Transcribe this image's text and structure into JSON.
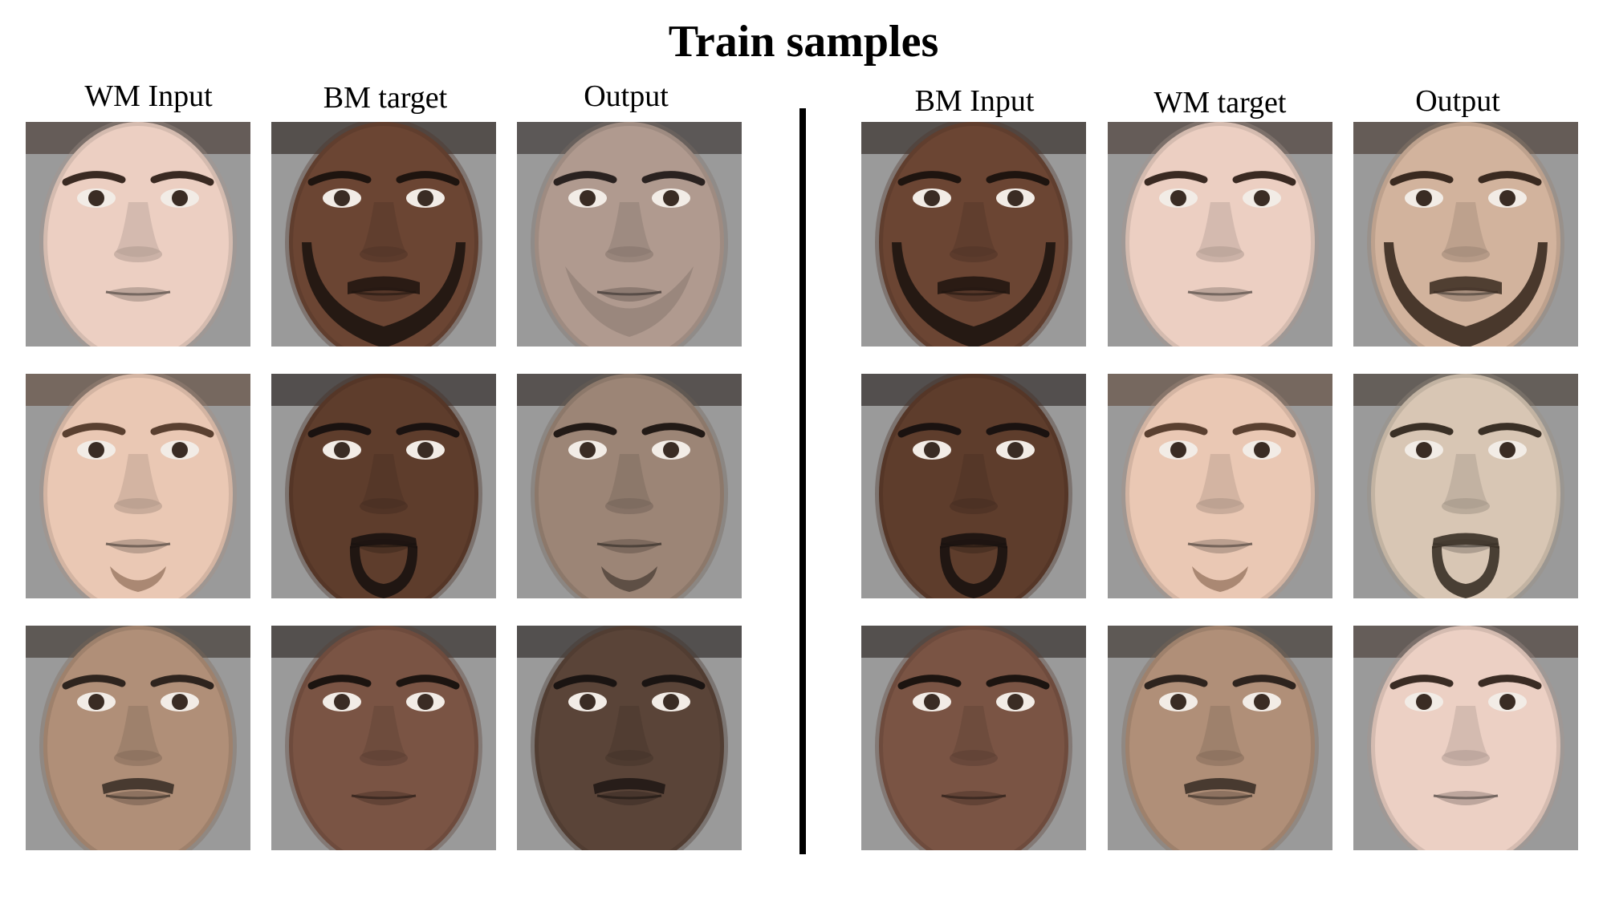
{
  "title": "Train samples",
  "left_panel": {
    "headers": [
      "WM Input",
      "BM target",
      "Output"
    ],
    "rows": [
      [
        {
          "icon": "face-photo",
          "skin": "#eccfc2",
          "hair": "#3a2a22",
          "beard": "none"
        },
        {
          "icon": "face-photo",
          "skin": "#6b4533",
          "hair": "#1e140f",
          "beard": "full"
        },
        {
          "icon": "face-photo",
          "skin": "#b09a8f",
          "hair": "#2a2220",
          "beard": "light"
        }
      ],
      [
        {
          "icon": "face-photo",
          "skin": "#eac8b4",
          "hair": "#5a4030",
          "beard": "goatee-light"
        },
        {
          "icon": "face-photo",
          "skin": "#5e3d2c",
          "hair": "#1a1210",
          "beard": "goatee"
        },
        {
          "icon": "face-photo",
          "skin": "#9c8576",
          "hair": "#221a16",
          "beard": "goatee-light"
        }
      ],
      [
        {
          "icon": "face-photo",
          "skin": "#b08f78",
          "hair": "#2e241e",
          "beard": "mustache"
        },
        {
          "icon": "face-photo",
          "skin": "#7a5444",
          "hair": "#1c1410",
          "beard": "none"
        },
        {
          "icon": "face-photo",
          "skin": "#5a4438",
          "hair": "#1a1412",
          "beard": "mustache"
        }
      ]
    ]
  },
  "right_panel": {
    "headers": [
      "BM Input",
      "WM target",
      "Output"
    ],
    "rows": [
      [
        {
          "icon": "face-photo",
          "skin": "#6b4533",
          "hair": "#1e140f",
          "beard": "full"
        },
        {
          "icon": "face-photo",
          "skin": "#eccfc2",
          "hair": "#3a2a22",
          "beard": "none"
        },
        {
          "icon": "face-photo",
          "skin": "#d2b39d",
          "hair": "#3a2a20",
          "beard": "full"
        }
      ],
      [
        {
          "icon": "face-photo",
          "skin": "#5e3d2c",
          "hair": "#1a1210",
          "beard": "goatee"
        },
        {
          "icon": "face-photo",
          "skin": "#eac8b4",
          "hair": "#5a4030",
          "beard": "goatee-light"
        },
        {
          "icon": "face-photo",
          "skin": "#d8c6b4",
          "hair": "#3a3026",
          "beard": "goatee"
        }
      ],
      [
        {
          "icon": "face-photo",
          "skin": "#7a5444",
          "hair": "#1c1410",
          "beard": "none"
        },
        {
          "icon": "face-photo",
          "skin": "#b08f78",
          "hair": "#2e241e",
          "beard": "mustache"
        },
        {
          "icon": "face-photo",
          "skin": "#ecd0c4",
          "hair": "#3a2c24",
          "beard": "none"
        }
      ]
    ]
  },
  "colors": {
    "background": "#ffffff",
    "divider": "#000000",
    "backdrop": "#9a9a9a"
  }
}
